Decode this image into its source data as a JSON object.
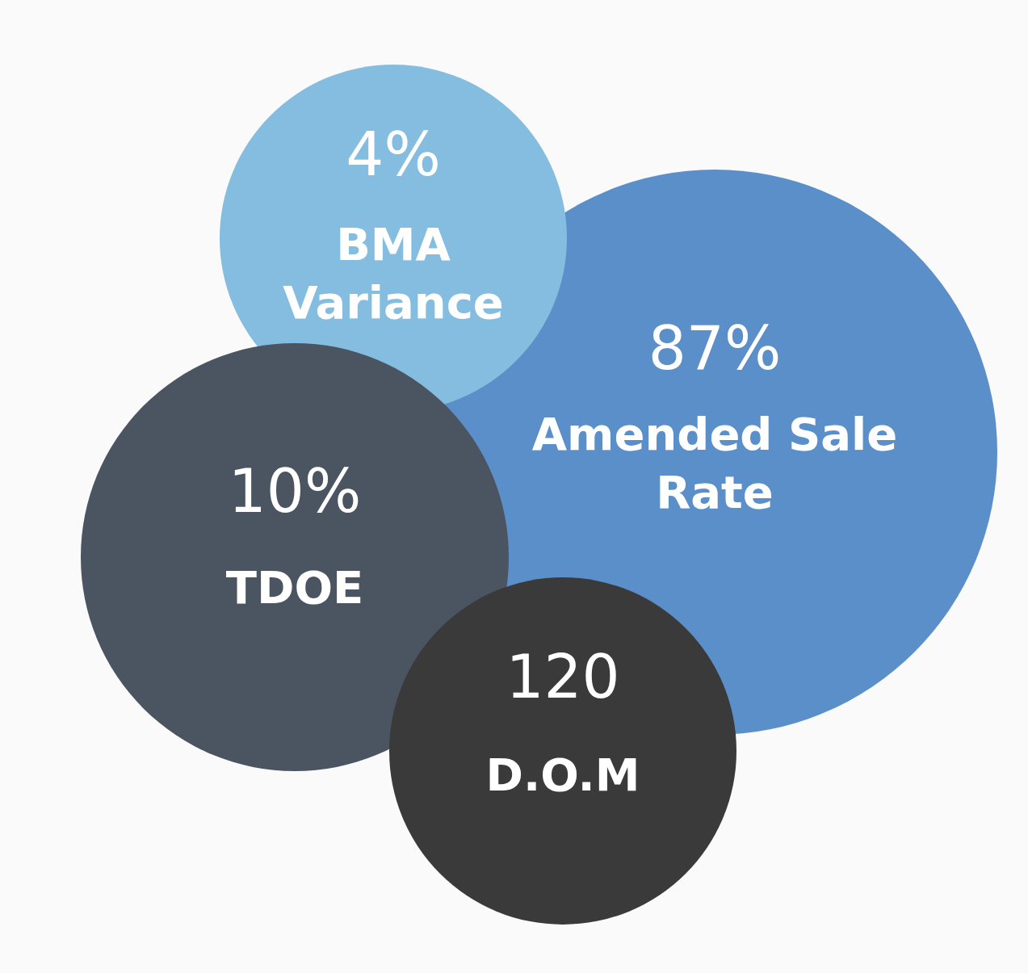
{
  "chart_data": {
    "type": "other",
    "categories": [
      "Amended Sale Rate",
      "BMA Variance",
      "TDOE",
      "D.O.M"
    ],
    "values": [
      87,
      4,
      10,
      120
    ],
    "value_labels": [
      "87%",
      "4%",
      "10%",
      "120"
    ],
    "colors": [
      "#5b8fc9",
      "#84bde0",
      "#4a5561",
      "#3a3a3a"
    ]
  }
}
